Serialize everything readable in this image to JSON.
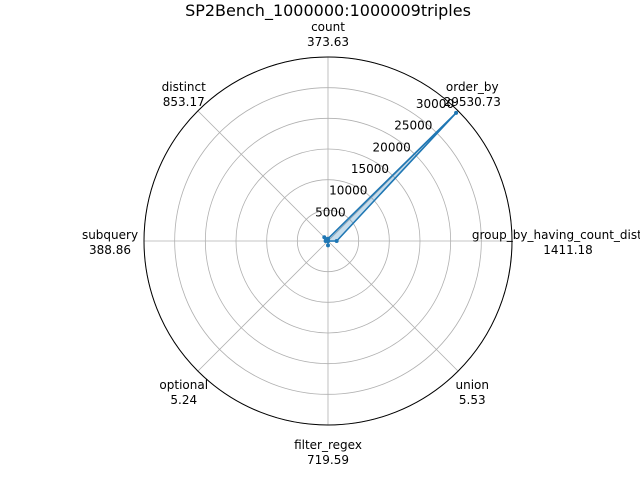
{
  "chart_data": {
    "type": "radar",
    "title": "SP2Bench_1000000:1000009triples",
    "rmax": 30000,
    "rticks": [
      5000,
      10000,
      15000,
      20000,
      25000,
      30000
    ],
    "rtick_labels": [
      "5000",
      "10000",
      "15000",
      "20000",
      "25000",
      "30000"
    ],
    "grid": true,
    "categories": [
      "group_by_having_count_distinct",
      "order_by",
      "count",
      "distinct",
      "subquery",
      "optional",
      "filter_regex",
      "union"
    ],
    "category_value_labels": [
      "1411.18",
      "29530.73",
      "373.63",
      "853.17",
      "388.86",
      "5.24",
      "719.59",
      "5.53"
    ],
    "series": [
      {
        "values": [
          1411.18,
          29530.73,
          373.63,
          853.17,
          388.86,
          5.24,
          719.59,
          5.53
        ],
        "color": "#1f77b4",
        "fill_color": "#1f77b4"
      }
    ]
  }
}
